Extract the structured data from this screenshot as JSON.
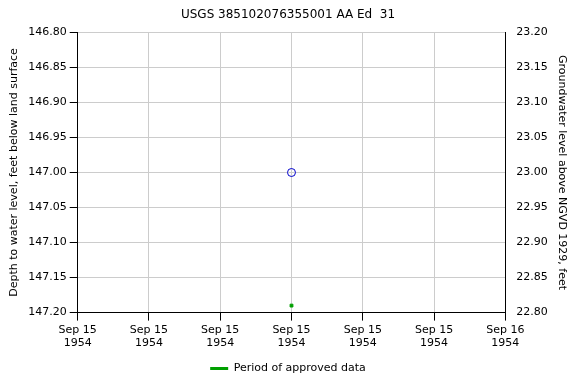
{
  "chart_data": {
    "type": "scatter",
    "title": "USGS 385102076355001 AA Ed  31",
    "y_label": "Depth to water level, feet below land surface",
    "y2_label": "Groundwater level above NGVD 1929, feet",
    "categories": [
      "Sep 15\n1954",
      "Sep 15\n1954",
      "Sep 15\n1954",
      "Sep 15\n1954",
      "Sep 15\n1954",
      "Sep 15\n1954",
      "Sep 16\n1954"
    ],
    "series": [
      {
        "color": "#0000cc",
        "marker": "circle",
        "values": [
          null,
          null,
          null,
          147.0,
          null,
          null,
          null
        ]
      },
      {
        "name": "Period of approved data",
        "color": "#00a000",
        "marker": "square",
        "values": [
          null,
          null,
          null,
          147.19,
          null,
          null,
          null
        ]
      }
    ],
    "ylim": [
      147.2,
      146.8
    ],
    "yticks": [
      {
        "value": 146.8,
        "label": "146.80"
      },
      {
        "value": 146.85,
        "label": "146.85"
      },
      {
        "value": 146.9,
        "label": "146.90"
      },
      {
        "value": 146.95,
        "label": "146.95"
      },
      {
        "value": 147.0,
        "label": "147.00"
      },
      {
        "value": 147.05,
        "label": "147.05"
      },
      {
        "value": 147.1,
        "label": "147.10"
      },
      {
        "value": 147.15,
        "label": "147.15"
      },
      {
        "value": 147.2,
        "label": "147.20"
      }
    ],
    "y2lim": [
      22.8,
      23.2
    ],
    "y2ticks": [
      {
        "value": 22.8,
        "label": "22.80"
      },
      {
        "value": 22.85,
        "label": "22.85"
      },
      {
        "value": 22.9,
        "label": "22.90"
      },
      {
        "value": 22.95,
        "label": "22.95"
      },
      {
        "value": 23.0,
        "label": "23.00"
      },
      {
        "value": 23.05,
        "label": "23.05"
      },
      {
        "value": 23.1,
        "label": "23.10"
      },
      {
        "value": 23.15,
        "label": "23.15"
      },
      {
        "value": 23.2,
        "label": "23.20"
      }
    ],
    "grid": true,
    "legend": "bottom"
  }
}
